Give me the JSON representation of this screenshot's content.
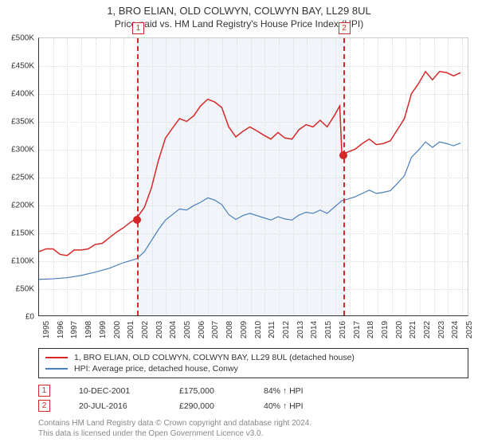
{
  "title": {
    "main": "1, BRO ELIAN, OLD COLWYN, COLWYN BAY, LL29 8UL",
    "sub": "Price paid vs. HM Land Registry's House Price Index (HPI)"
  },
  "chart": {
    "type": "line",
    "background_color": "#ffffff",
    "grid_color": "#e0e0e0",
    "axis_color": "#333333",
    "shade_color": "#e8eef7",
    "x_min": 1995,
    "x_max": 2025.5,
    "y_min": 0,
    "y_max": 500,
    "y_ticks": [
      0,
      50,
      100,
      150,
      200,
      250,
      300,
      350,
      400,
      450,
      500
    ],
    "y_tick_labels": [
      "£0",
      "£50K",
      "£100K",
      "£150K",
      "£200K",
      "£250K",
      "£300K",
      "£350K",
      "£400K",
      "£450K",
      "£500K"
    ],
    "x_ticks": [
      1995,
      1996,
      1997,
      1998,
      1999,
      2000,
      2001,
      2002,
      2003,
      2004,
      2005,
      2006,
      2007,
      2008,
      2009,
      2010,
      2011,
      2012,
      2013,
      2014,
      2015,
      2016,
      2017,
      2018,
      2019,
      2020,
      2021,
      2022,
      2023,
      2024,
      2025
    ],
    "shade_from": 2001.94,
    "shade_to": 2016.55,
    "series": [
      {
        "key": "price",
        "color": "#d62728",
        "line_width": 1.5,
        "points": [
          [
            1995,
            115
          ],
          [
            1995.5,
            120
          ],
          [
            1996,
            120
          ],
          [
            1996.5,
            110
          ],
          [
            1997,
            108
          ],
          [
            1997.5,
            118
          ],
          [
            1998,
            118
          ],
          [
            1998.5,
            120
          ],
          [
            1999,
            128
          ],
          [
            1999.5,
            130
          ],
          [
            2000,
            140
          ],
          [
            2000.5,
            150
          ],
          [
            2001,
            158
          ],
          [
            2001.5,
            168
          ],
          [
            2001.94,
            175
          ],
          [
            2002.5,
            195
          ],
          [
            2003,
            230
          ],
          [
            2003.5,
            280
          ],
          [
            2004,
            320
          ],
          [
            2004.5,
            338
          ],
          [
            2005,
            355
          ],
          [
            2005.5,
            350
          ],
          [
            2006,
            360
          ],
          [
            2006.5,
            378
          ],
          [
            2007,
            390
          ],
          [
            2007.5,
            385
          ],
          [
            2008,
            375
          ],
          [
            2008.5,
            340
          ],
          [
            2009,
            322
          ],
          [
            2009.5,
            332
          ],
          [
            2010,
            340
          ],
          [
            2010.5,
            333
          ],
          [
            2011,
            325
          ],
          [
            2011.5,
            318
          ],
          [
            2012,
            330
          ],
          [
            2012.5,
            320
          ],
          [
            2013,
            318
          ],
          [
            2013.5,
            335
          ],
          [
            2014,
            344
          ],
          [
            2014.5,
            340
          ],
          [
            2015,
            352
          ],
          [
            2015.5,
            340
          ],
          [
            2016,
            360
          ],
          [
            2016.4,
            378
          ],
          [
            2016.55,
            290
          ],
          [
            2017,
            295
          ],
          [
            2017.5,
            300
          ],
          [
            2018,
            310
          ],
          [
            2018.5,
            318
          ],
          [
            2019,
            308
          ],
          [
            2019.5,
            310
          ],
          [
            2020,
            315
          ],
          [
            2020.5,
            335
          ],
          [
            2021,
            355
          ],
          [
            2021.5,
            400
          ],
          [
            2022,
            418
          ],
          [
            2022.5,
            440
          ],
          [
            2023,
            425
          ],
          [
            2023.5,
            440
          ],
          [
            2024,
            438
          ],
          [
            2024.5,
            432
          ],
          [
            2025,
            438
          ]
        ]
      },
      {
        "key": "hpi",
        "color": "#4a7ebb",
        "line_width": 1.2,
        "points": [
          [
            1995,
            65
          ],
          [
            1996,
            66
          ],
          [
            1997,
            68
          ],
          [
            1998,
            72
          ],
          [
            1999,
            78
          ],
          [
            2000,
            85
          ],
          [
            2001,
            95
          ],
          [
            2001.94,
            102
          ],
          [
            2002.5,
            115
          ],
          [
            2003,
            135
          ],
          [
            2003.5,
            155
          ],
          [
            2004,
            172
          ],
          [
            2004.5,
            182
          ],
          [
            2005,
            192
          ],
          [
            2005.5,
            190
          ],
          [
            2006,
            198
          ],
          [
            2006.5,
            204
          ],
          [
            2007,
            212
          ],
          [
            2007.5,
            208
          ],
          [
            2008,
            200
          ],
          [
            2008.5,
            182
          ],
          [
            2009,
            173
          ],
          [
            2009.5,
            180
          ],
          [
            2010,
            184
          ],
          [
            2010.5,
            180
          ],
          [
            2011,
            176
          ],
          [
            2011.5,
            172
          ],
          [
            2012,
            178
          ],
          [
            2012.5,
            174
          ],
          [
            2013,
            172
          ],
          [
            2013.5,
            181
          ],
          [
            2014,
            186
          ],
          [
            2014.5,
            184
          ],
          [
            2015,
            190
          ],
          [
            2015.5,
            184
          ],
          [
            2016,
            195
          ],
          [
            2016.55,
            207
          ],
          [
            2017,
            210
          ],
          [
            2017.5,
            214
          ],
          [
            2018,
            220
          ],
          [
            2018.5,
            226
          ],
          [
            2019,
            220
          ],
          [
            2019.5,
            222
          ],
          [
            2020,
            225
          ],
          [
            2020.5,
            238
          ],
          [
            2021,
            252
          ],
          [
            2021.5,
            285
          ],
          [
            2022,
            298
          ],
          [
            2022.5,
            313
          ],
          [
            2023,
            303
          ],
          [
            2023.5,
            313
          ],
          [
            2024,
            310
          ],
          [
            2024.5,
            306
          ],
          [
            2025,
            311
          ]
        ]
      }
    ],
    "markers": [
      {
        "id": "1",
        "x": 2001.94,
        "y": 175,
        "color": "#d62728"
      },
      {
        "id": "2",
        "x": 2016.55,
        "y": 290,
        "color": "#d62728"
      }
    ]
  },
  "legend": {
    "items": [
      {
        "color": "#d62728",
        "label": "1, BRO ELIAN, OLD COLWYN, COLWYN BAY, LL29 8UL (detached house)"
      },
      {
        "color": "#4a7ebb",
        "label": "HPI: Average price, detached house, Conwy"
      }
    ]
  },
  "marker_table": [
    {
      "id": "1",
      "color": "#d62728",
      "date": "10-DEC-2001",
      "price": "£175,000",
      "delta": "84% ↑ HPI"
    },
    {
      "id": "2",
      "color": "#d62728",
      "date": "20-JUL-2016",
      "price": "£290,000",
      "delta": "40% ↑ HPI"
    }
  ],
  "footnote": {
    "line1": "Contains HM Land Registry data © Crown copyright and database right 2024.",
    "line2": "This data is licensed under the Open Government Licence v3.0."
  }
}
